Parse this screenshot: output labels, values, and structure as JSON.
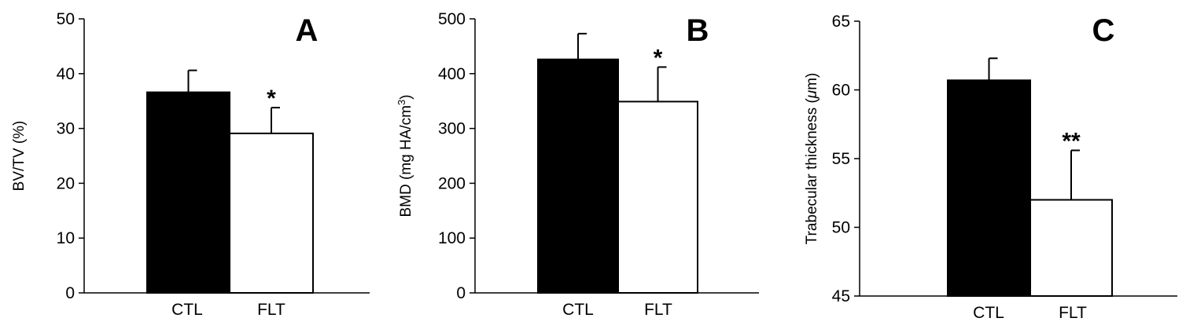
{
  "colors": {
    "ctl_bar": "#000000",
    "flt_bar": "#ffffff",
    "outline": "#000000"
  },
  "chart_data": [
    {
      "type": "bar",
      "panel": "A",
      "ylabel": "BV/TV (%)",
      "categories": [
        "CTL",
        "FLT"
      ],
      "values": [
        36.6,
        29.1
      ],
      "errors": [
        4.0,
        4.7
      ],
      "significance": [
        "",
        "*"
      ],
      "ylim": [
        0,
        50
      ],
      "yticks": [
        "0",
        "10",
        "20",
        "30",
        "40",
        "50"
      ],
      "grid": false
    },
    {
      "type": "bar",
      "panel": "B",
      "ylabel": {
        "text": "BMD (mg HA/cm",
        "sup": "3",
        "end": ")"
      },
      "categories": [
        "CTL",
        "FLT"
      ],
      "values": [
        426,
        349
      ],
      "errors": [
        47,
        63
      ],
      "significance": [
        "",
        "*"
      ],
      "ylim": [
        0,
        500
      ],
      "yticks": [
        "0",
        "100",
        "200",
        "300",
        "400",
        "500"
      ],
      "grid": false
    },
    {
      "type": "bar",
      "panel": "C",
      "ylabel": {
        "text": "Trabecular thickness (",
        "unit": "μ",
        "end": "m)"
      },
      "categories": [
        "CTL",
        "FLT"
      ],
      "values": [
        60.7,
        52.0
      ],
      "errors": [
        1.6,
        3.6
      ],
      "significance": [
        "",
        "**"
      ],
      "ylim": [
        45,
        65
      ],
      "yticks": [
        "45",
        "50",
        "55",
        "60",
        "65"
      ],
      "grid": false
    }
  ]
}
